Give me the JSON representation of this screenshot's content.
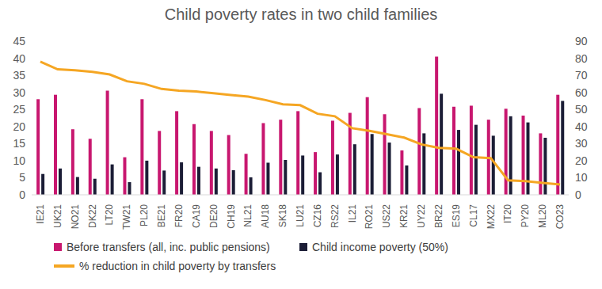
{
  "chart_data": {
    "type": "bar",
    "title": "Child poverty rates in two child families",
    "categories": [
      "IE21",
      "UK21",
      "NO21",
      "DK22",
      "LT20",
      "TW21",
      "PL20",
      "BE21",
      "FR20",
      "CA19",
      "DE20",
      "CH19",
      "NL21",
      "AU18",
      "SK18",
      "LU21",
      "CZ16",
      "RS22",
      "IL21",
      "RO21",
      "US22",
      "KR21",
      "UY22",
      "BR22",
      "ES19",
      "CL17",
      "MX22",
      "IT20",
      "PY20",
      "ML20",
      "CO23"
    ],
    "series": [
      {
        "name": "Before transfers (all, inc. public pensions)",
        "type": "bar",
        "color": "#c8176f",
        "values": [
          28,
          29.3,
          19.2,
          16.4,
          30.5,
          11,
          28,
          18.7,
          24.5,
          20.7,
          18.7,
          17.5,
          12,
          21,
          22,
          24.5,
          12.5,
          21.7,
          24,
          28.6,
          23.6,
          13,
          25.4,
          40.5,
          25.8,
          26.1,
          22,
          25.2,
          23.2,
          18,
          29.3
        ]
      },
      {
        "name": "Child income poverty (50%)",
        "type": "bar",
        "color": "#1b1d36",
        "values": [
          6.1,
          7.7,
          5.2,
          4.7,
          8.9,
          3.7,
          10,
          7.1,
          9.5,
          8.2,
          7.7,
          7.2,
          5.1,
          9.4,
          10.2,
          11.5,
          6.6,
          11.8,
          14.8,
          17.8,
          15.3,
          8.6,
          18,
          29.6,
          19,
          20.5,
          17.3,
          23,
          21.2,
          16.7,
          27.5
        ]
      },
      {
        "name": "% reduction in child poverty by transfers",
        "type": "line",
        "axis": "y2",
        "color": "#f5a623",
        "values": [
          78,
          73.5,
          73,
          72,
          70.5,
          66.5,
          65,
          62,
          61,
          60.5,
          59.5,
          58.5,
          57.5,
          55.5,
          53,
          52.5,
          47.5,
          46,
          39,
          37.5,
          35.5,
          33.5,
          29.5,
          27.5,
          27,
          22,
          21.5,
          8.5,
          8,
          7,
          6
        ]
      }
    ],
    "ylim": [
      0,
      45
    ],
    "yticks": [
      0,
      5,
      10,
      15,
      20,
      25,
      30,
      35,
      40,
      45
    ],
    "y2lim": [
      0,
      90
    ],
    "y2ticks": [
      0,
      10,
      20,
      30,
      40,
      50,
      60,
      70,
      80,
      90
    ],
    "legend": "bottom",
    "grid": false
  }
}
